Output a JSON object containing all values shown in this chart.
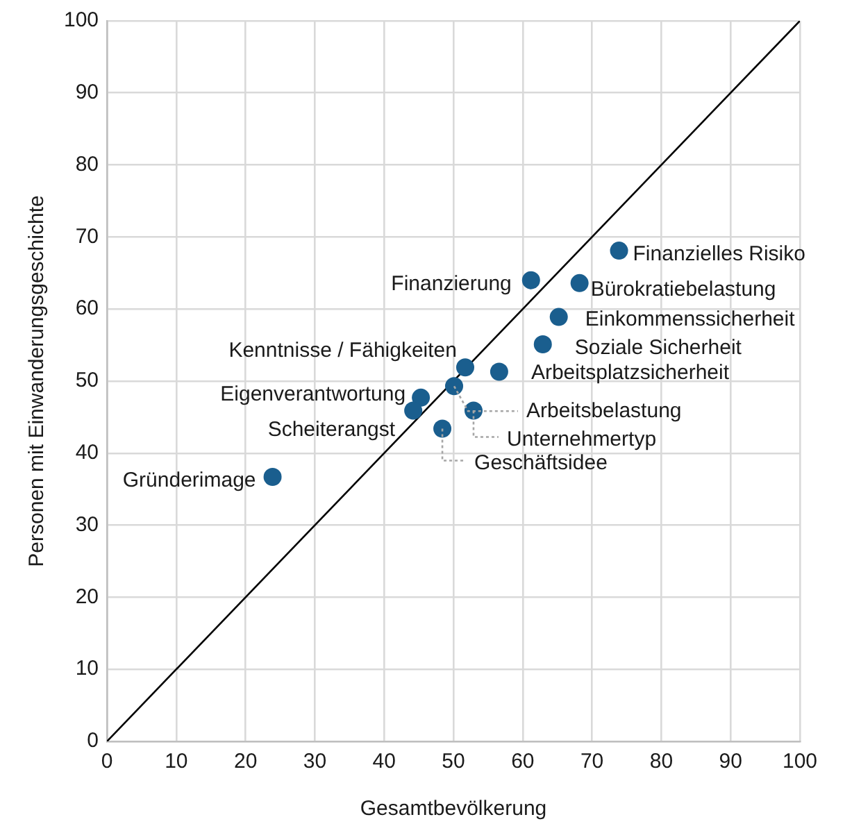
{
  "chart_data": {
    "type": "scatter",
    "xlabel": "Gesamtbevölkerung",
    "ylabel": "Personen mit Einwanderungsgeschichte",
    "xlim": [
      0,
      100
    ],
    "ylim": [
      0,
      100
    ],
    "xticks": [
      0,
      10,
      20,
      30,
      40,
      50,
      60,
      70,
      80,
      90,
      100
    ],
    "yticks": [
      0,
      10,
      20,
      30,
      40,
      50,
      60,
      70,
      80,
      90,
      100
    ],
    "grid": true,
    "legend": false,
    "marker": "circle",
    "series": [
      {
        "color": "#1a5e8e",
        "x": [
          23.9,
          73.9,
          61.2,
          68.2,
          65.2,
          62.9,
          56.6,
          51.7,
          45.3,
          44.2,
          50.1,
          52.9,
          48.4
        ],
        "values": [
          36.7,
          68.1,
          64.0,
          63.6,
          58.9,
          55.1,
          51.3,
          51.9,
          47.7,
          45.9,
          49.3,
          45.9,
          43.4
        ]
      },
      {
        "type": "line",
        "color": "#000000",
        "x": [
          0,
          100
        ],
        "values": [
          0,
          100
        ],
        "marker": "none"
      }
    ],
    "annotations": [
      {
        "text": "Gründerimage",
        "x": 23.9,
        "y": 36.7
      },
      {
        "text": "Finanzielles Risiko",
        "x": 73.9,
        "y": 68.1
      },
      {
        "text": "Finanzierung",
        "x": 61.2,
        "y": 64.0
      },
      {
        "text": "Bürokratiebelastung",
        "x": 68.2,
        "y": 63.6
      },
      {
        "text": "Einkommenssicherheit",
        "x": 65.2,
        "y": 58.9
      },
      {
        "text": "Soziale Sicherheit",
        "x": 62.9,
        "y": 55.1
      },
      {
        "text": "Arbeitsplatzsicherheit",
        "x": 56.6,
        "y": 51.3
      },
      {
        "text": "Kenntnisse / Fähigkeiten",
        "x": 51.7,
        "y": 51.9
      },
      {
        "text": "Eigenverantwortung",
        "x": 45.3,
        "y": 47.7
      },
      {
        "text": "Scheiterangst",
        "x": 44.2,
        "y": 45.9
      },
      {
        "text": "Arbeitsbelastung",
        "x": 50.1,
        "y": 49.3
      },
      {
        "text": "Unternehmertyp",
        "x": 52.9,
        "y": 45.9
      },
      {
        "text": "Geschäftsidee",
        "x": 48.4,
        "y": 43.4
      }
    ]
  }
}
